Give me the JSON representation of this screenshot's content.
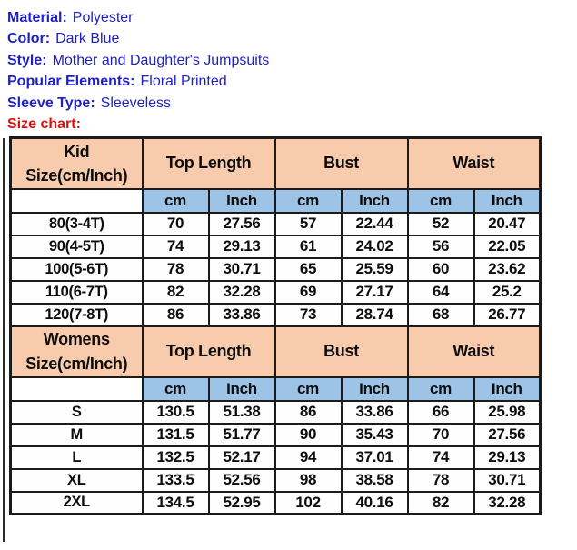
{
  "product_info": {
    "lines": [
      {
        "label": "Material:",
        "value": "Polyester"
      },
      {
        "label": "Color:",
        "value": "Dark Blue"
      },
      {
        "label": "Style:",
        "value": "Mother and Daughter's Jumpsuits"
      },
      {
        "label": "Popular Elements:",
        "value": "Floral Printed"
      },
      {
        "label": "Sleeve Type:",
        "value": "Sleeveless"
      }
    ],
    "size_chart_label": "Size chart:"
  },
  "colors": {
    "info_text_blue": "#1f1fc8",
    "size_chart_red": "#dd1111",
    "header_tan": "#f8cbad",
    "unit_blue": "#9dc3e6",
    "table_border": "#1b1b1b"
  },
  "size_chart": {
    "sections": [
      {
        "title_line1": "Kid",
        "title_line2": "Size(cm/Inch)",
        "groups": [
          "Top Length",
          "Bust",
          "Waist"
        ],
        "units": [
          "cm",
          "Inch",
          "cm",
          "Inch",
          "cm",
          "Inch"
        ],
        "rows": [
          {
            "size": "80(3-4T)",
            "values": [
              "70",
              "27.56",
              "57",
              "22.44",
              "52",
              "20.47"
            ]
          },
          {
            "size": "90(4-5T)",
            "values": [
              "74",
              "29.13",
              "61",
              "24.02",
              "56",
              "22.05"
            ]
          },
          {
            "size": "100(5-6T)",
            "values": [
              "78",
              "30.71",
              "65",
              "25.59",
              "60",
              "23.62"
            ]
          },
          {
            "size": "110(6-7T)",
            "values": [
              "82",
              "32.28",
              "69",
              "27.17",
              "64",
              "25.2"
            ]
          },
          {
            "size": "120(7-8T)",
            "values": [
              "86",
              "33.86",
              "73",
              "28.74",
              "68",
              "26.77"
            ]
          }
        ]
      },
      {
        "title_line1": "Womens",
        "title_line2": "Size(cm/Inch)",
        "groups": [
          "Top Length",
          "Bust",
          "Waist"
        ],
        "units": [
          "cm",
          "Inch",
          "cm",
          "Inch",
          "cm",
          "Inch"
        ],
        "rows": [
          {
            "size": "S",
            "values": [
              "130.5",
              "51.38",
              "86",
              "33.86",
              "66",
              "25.98"
            ]
          },
          {
            "size": "M",
            "values": [
              "131.5",
              "51.77",
              "90",
              "35.43",
              "70",
              "27.56"
            ]
          },
          {
            "size": "L",
            "values": [
              "132.5",
              "52.17",
              "94",
              "37.01",
              "74",
              "29.13"
            ]
          },
          {
            "size": "XL",
            "values": [
              "133.5",
              "52.56",
              "98",
              "38.58",
              "78",
              "30.71"
            ]
          },
          {
            "size": "2XL",
            "values": [
              "134.5",
              "52.95",
              "102",
              "40.16",
              "82",
              "32.28"
            ]
          }
        ]
      }
    ]
  }
}
